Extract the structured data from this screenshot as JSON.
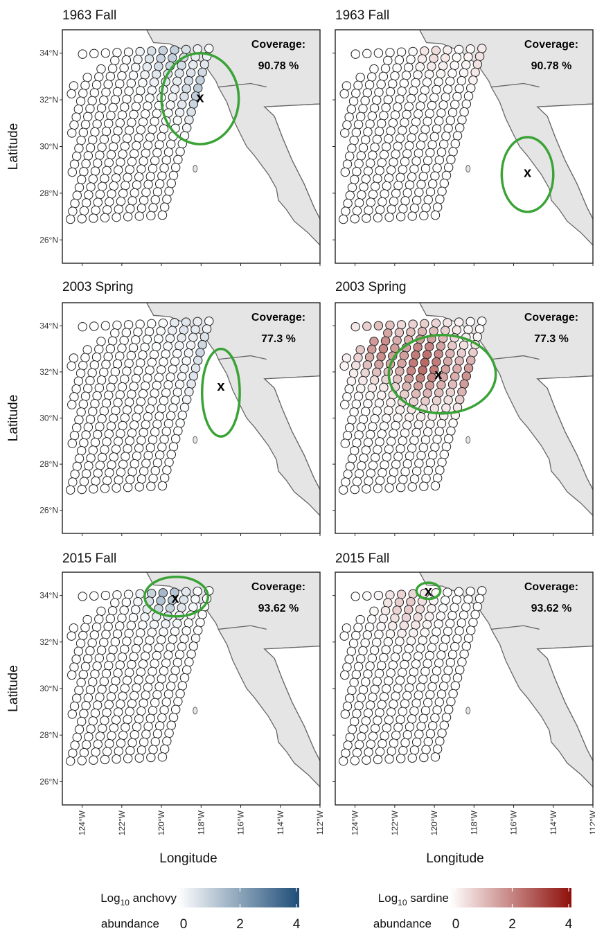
{
  "axes": {
    "xlabel": "Longitude",
    "ylabel": "Latitude",
    "x_ticks": [
      {
        "value": -124,
        "label": "124°W"
      },
      {
        "value": -122,
        "label": "122°W"
      },
      {
        "value": -120,
        "label": "120°W"
      },
      {
        "value": -118,
        "label": "118°W"
      },
      {
        "value": -116,
        "label": "116°W"
      },
      {
        "value": -114,
        "label": "114°W"
      },
      {
        "value": -112,
        "label": "112°W"
      }
    ],
    "y_ticks": [
      {
        "value": 34,
        "label": "34°N"
      },
      {
        "value": 32,
        "label": "32°N"
      },
      {
        "value": 30,
        "label": "30°N"
      },
      {
        "value": 28,
        "label": "28°N"
      },
      {
        "value": 26,
        "label": "26°N"
      }
    ],
    "xlim": [
      -125,
      -112
    ],
    "ylim": [
      25,
      35
    ]
  },
  "coverage_label": "Coverage:",
  "colors": {
    "anchovy_low": "#ffffff",
    "anchovy_high": "#1e4d78",
    "sardine_low": "#ffffff",
    "sardine_high": "#8e0f0a",
    "land": "#e5e5e5",
    "coast": "#666666",
    "ellipse": "#3aa336",
    "point_stroke": "#222222"
  },
  "rows": [
    {
      "panels": [
        {
          "title": "1963 Fall",
          "species": "anchovy",
          "coverage": "90.78 %",
          "marker": {
            "lon": -118.05,
            "lat": 32.1
          },
          "ellipse": {
            "lon": -118.05,
            "lat": 32.05,
            "rlon": 1.95,
            "rlat": 1.95
          },
          "hot": [
            {
              "lon": -117.8,
              "lat": 32.3,
              "v": 1.3,
              "r": 1.3
            },
            {
              "lon": -119.6,
              "lat": 34.0,
              "v": 1.1,
              "r": 1.3
            },
            {
              "lon": -116.9,
              "lat": 30.5,
              "v": 1.0,
              "r": 1.2
            },
            {
              "lon": -114.5,
              "lat": 28.2,
              "v": 1.0,
              "r": 0.7
            }
          ]
        },
        {
          "title": "1963 Fall",
          "species": "sardine",
          "coverage": "90.78 %",
          "marker": {
            "lon": -115.3,
            "lat": 28.9
          },
          "ellipse": {
            "lon": -115.3,
            "lat": 28.8,
            "rlon": 1.3,
            "rlat": 1.6
          },
          "hot": [
            {
              "lon": -115.0,
              "lat": 28.1,
              "v": 1.3,
              "r": 0.9
            },
            {
              "lon": -117.0,
              "lat": 30.3,
              "v": 0.9,
              "r": 1.1
            },
            {
              "lon": -117.2,
              "lat": 33.5,
              "v": 0.7,
              "r": 1.0
            },
            {
              "lon": -120.0,
              "lat": 34.0,
              "v": 0.6,
              "r": 0.8
            }
          ]
        }
      ]
    },
    {
      "panels": [
        {
          "title": "2003 Spring",
          "species": "anchovy",
          "coverage": "77.3 %",
          "marker": {
            "lon": -117.0,
            "lat": 31.4
          },
          "ellipse": {
            "lon": -117.0,
            "lat": 31.1,
            "rlon": 0.95,
            "rlat": 1.9
          },
          "hot": [
            {
              "lon": -117.0,
              "lat": 31.5,
              "v": 1.9,
              "r": 1.3
            },
            {
              "lon": -117.4,
              "lat": 32.8,
              "v": 1.5,
              "r": 0.9
            },
            {
              "lon": -114.9,
              "lat": 28.2,
              "v": 1.3,
              "r": 0.9
            },
            {
              "lon": -118.8,
              "lat": 34.0,
              "v": 0.6,
              "r": 1.0
            }
          ]
        },
        {
          "title": "2003 Spring",
          "species": "sardine",
          "coverage": "77.3 %",
          "marker": {
            "lon": -119.8,
            "lat": 31.9
          },
          "ellipse": {
            "lon": -119.6,
            "lat": 31.9,
            "rlon": 2.7,
            "rlat": 1.7
          },
          "hot": [
            {
              "lon": -120.5,
              "lat": 32.4,
              "v": 2.5,
              "r": 1.6
            },
            {
              "lon": -122.6,
              "lat": 33.0,
              "v": 2.0,
              "r": 1.3
            },
            {
              "lon": -118.3,
              "lat": 31.8,
              "v": 1.8,
              "r": 1.2
            },
            {
              "lon": -115.0,
              "lat": 28.2,
              "v": 2.2,
              "r": 0.8
            },
            {
              "lon": -116.5,
              "lat": 29.5,
              "v": 1.0,
              "r": 1.1
            }
          ]
        }
      ]
    },
    {
      "panels": [
        {
          "title": "2015 Fall",
          "species": "anchovy",
          "coverage": "93.62 %",
          "marker": {
            "lon": -119.3,
            "lat": 33.9
          },
          "ellipse": {
            "lon": -119.25,
            "lat": 33.95,
            "rlon": 1.6,
            "rlat": 0.85
          },
          "hot": [
            {
              "lon": -119.8,
              "lat": 34.1,
              "v": 1.6,
              "r": 1.0
            },
            {
              "lon": -117.6,
              "lat": 31.7,
              "v": 0.8,
              "r": 0.6
            },
            {
              "lon": -116.7,
              "lat": 29.3,
              "v": 0.6,
              "r": 0.5
            }
          ]
        },
        {
          "title": "2015 Fall",
          "species": "sardine",
          "coverage": "93.62 %",
          "marker": {
            "lon": -120.3,
            "lat": 34.2
          },
          "ellipse": {
            "lon": -120.3,
            "lat": 34.2,
            "rlon": 0.6,
            "rlat": 0.35
          },
          "hot": [
            {
              "lon": -121.4,
              "lat": 33.6,
              "v": 0.9,
              "r": 1.1
            }
          ]
        }
      ]
    }
  ],
  "legends": [
    {
      "species": "anchovy",
      "title_main": "Log",
      "title_sub": "10",
      "title_rest": " anchovy",
      "subtitle": "abundance",
      "ticks": [
        "0",
        "2",
        "4"
      ]
    },
    {
      "species": "sardine",
      "title_main": "Log",
      "title_sub": "10",
      "title_rest": " sardine",
      "subtitle": "abundance",
      "ticks": [
        "0",
        "2",
        "4"
      ]
    }
  ]
}
